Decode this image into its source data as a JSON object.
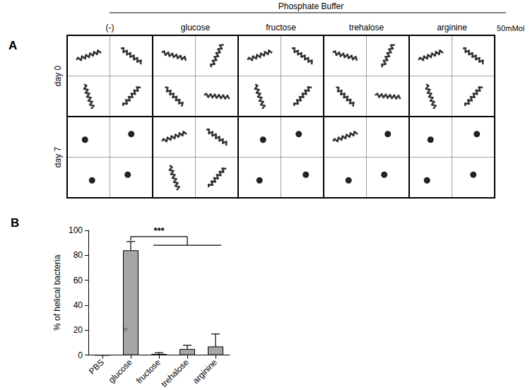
{
  "figure": {
    "panel_a": {
      "label": "A",
      "header": "Phosphate Buffer",
      "concentration": "50mMol",
      "columns": [
        "(-)",
        "glucose",
        "fructose",
        "trehalose",
        "arginine"
      ],
      "rows": [
        "day 0",
        "day 7"
      ]
    }
  },
  "chart_data": {
    "label": "B",
    "type": "bar",
    "categories": [
      "PBS",
      "glucose",
      "fructose",
      "trehalose",
      "arginine"
    ],
    "values": [
      0,
      84,
      1,
      5,
      7
    ],
    "errors": [
      0,
      7,
      1,
      3,
      10
    ],
    "color": "#a6a6a6",
    "ylabel": "% of helical bacteria",
    "ylim": [
      0,
      100
    ],
    "yticks": [
      0,
      20,
      40,
      60,
      80,
      100
    ],
    "grid": false,
    "annotations": [
      {
        "text": "***",
        "from": "glucose",
        "to": [
          "fructose",
          "trehalose",
          "arginine"
        ]
      },
      {
        "text": "P",
        "category": "glucose",
        "y": 20
      }
    ]
  }
}
